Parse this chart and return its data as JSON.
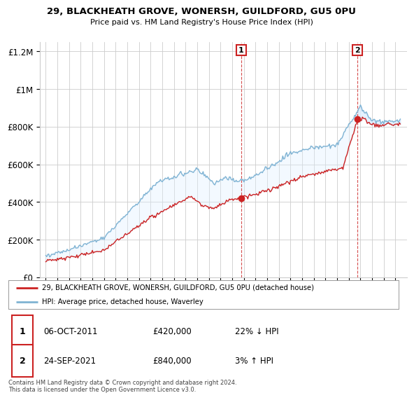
{
  "title": "29, BLACKHEATH GROVE, WONERSH, GUILDFORD, GU5 0PU",
  "subtitle": "Price paid vs. HM Land Registry's House Price Index (HPI)",
  "red_label": "29, BLACKHEATH GROVE, WONERSH, GUILDFORD, GU5 0PU (detached house)",
  "blue_label": "HPI: Average price, detached house, Waverley",
  "annotation1": {
    "num": "1",
    "date": "06-OCT-2011",
    "price": "£420,000",
    "pct": "22% ↓ HPI"
  },
  "annotation2": {
    "num": "2",
    "date": "24-SEP-2021",
    "price": "£840,000",
    "pct": "3% ↑ HPI"
  },
  "footnote": "Contains HM Land Registry data © Crown copyright and database right 2024.\nThis data is licensed under the Open Government Licence v3.0.",
  "red_color": "#cc2222",
  "blue_color": "#7fb3d3",
  "blue_fill": "#ddeeff",
  "grid_color": "#cccccc",
  "background_color": "#ffffff",
  "ylim": [
    0,
    1250000
  ],
  "yticks": [
    0,
    200000,
    400000,
    600000,
    800000,
    1000000
  ],
  "ytick_labels": [
    "£0",
    "£200K",
    "£400K",
    "£600K",
    "£800K",
    "£1M"
  ],
  "ytick_top": 1200000,
  "ytick_top_label": "£1.2M",
  "sale1_x": 2011.77,
  "sale1_y": 420000,
  "sale2_x": 2021.73,
  "sale2_y": 840000,
  "xmin": 1994.5,
  "xmax": 2026.0
}
